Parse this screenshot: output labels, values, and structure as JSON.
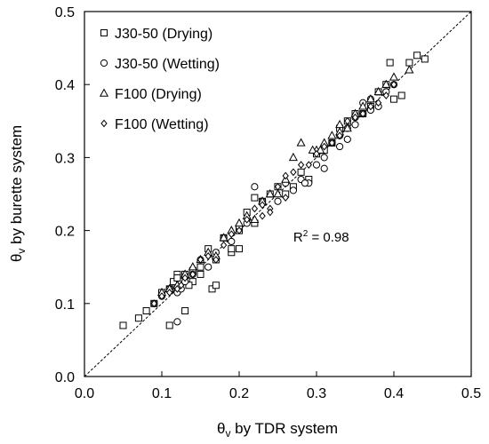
{
  "chart_data": {
    "type": "scatter",
    "xlabel": "θv by TDR system",
    "xlabel_parts": {
      "theta": "θ",
      "sub": "v",
      "rest": " by TDR system"
    },
    "ylabel": "θv by burette system",
    "ylabel_parts": {
      "theta": "θ",
      "sub": "v",
      "rest": " by burette system"
    },
    "xlim": [
      0,
      0.5
    ],
    "ylim": [
      0,
      0.5
    ],
    "xticks": [
      "0.0",
      "0.1",
      "0.2",
      "0.3",
      "0.4",
      "0.5"
    ],
    "yticks": [
      "0.0",
      "0.1",
      "0.2",
      "0.3",
      "0.4",
      "0.5"
    ],
    "reference_line": {
      "label": "1:1 line",
      "from": [
        0,
        0
      ],
      "to": [
        0.5,
        0.5
      ],
      "style": "dashed"
    },
    "annotation": {
      "text": "R² = 0.98",
      "prefix": "R",
      "sup": "2",
      "suffix": " = 0.98",
      "x": 0.27,
      "y": 0.185
    },
    "legend_position": "top-left",
    "series": [
      {
        "name": "J30-50 (Drying)",
        "marker": "square",
        "points": [
          [
            0.05,
            0.07
          ],
          [
            0.07,
            0.08
          ],
          [
            0.08,
            0.09
          ],
          [
            0.09,
            0.1
          ],
          [
            0.1,
            0.115
          ],
          [
            0.11,
            0.12
          ],
          [
            0.115,
            0.13
          ],
          [
            0.12,
            0.14
          ],
          [
            0.12,
            0.12
          ],
          [
            0.125,
            0.13
          ],
          [
            0.13,
            0.14
          ],
          [
            0.14,
            0.13
          ],
          [
            0.15,
            0.15
          ],
          [
            0.16,
            0.175
          ],
          [
            0.17,
            0.16
          ],
          [
            0.18,
            0.19
          ],
          [
            0.19,
            0.17
          ],
          [
            0.2,
            0.2
          ],
          [
            0.21,
            0.225
          ],
          [
            0.22,
            0.21
          ],
          [
            0.22,
            0.245
          ],
          [
            0.23,
            0.24
          ],
          [
            0.24,
            0.25
          ],
          [
            0.25,
            0.26
          ],
          [
            0.26,
            0.25
          ],
          [
            0.27,
            0.26
          ],
          [
            0.28,
            0.28
          ],
          [
            0.29,
            0.27
          ],
          [
            0.3,
            0.305
          ],
          [
            0.31,
            0.31
          ],
          [
            0.32,
            0.32
          ],
          [
            0.33,
            0.34
          ],
          [
            0.34,
            0.35
          ],
          [
            0.35,
            0.36
          ],
          [
            0.36,
            0.36
          ],
          [
            0.37,
            0.37
          ],
          [
            0.38,
            0.39
          ],
          [
            0.39,
            0.4
          ],
          [
            0.395,
            0.43
          ],
          [
            0.4,
            0.38
          ],
          [
            0.41,
            0.385
          ],
          [
            0.42,
            0.43
          ],
          [
            0.43,
            0.44
          ],
          [
            0.44,
            0.435
          ],
          [
            0.11,
            0.07
          ],
          [
            0.13,
            0.09
          ],
          [
            0.15,
            0.14
          ],
          [
            0.165,
            0.12
          ],
          [
            0.17,
            0.125
          ],
          [
            0.19,
            0.175
          ],
          [
            0.2,
            0.175
          ],
          [
            0.12,
            0.135
          ],
          [
            0.14,
            0.145
          ],
          [
            0.135,
            0.125
          ]
        ]
      },
      {
        "name": "J30-50 (Wetting)",
        "marker": "circle",
        "points": [
          [
            0.09,
            0.1
          ],
          [
            0.1,
            0.11
          ],
          [
            0.11,
            0.12
          ],
          [
            0.12,
            0.115
          ],
          [
            0.125,
            0.12
          ],
          [
            0.13,
            0.13
          ],
          [
            0.12,
            0.075
          ],
          [
            0.14,
            0.14
          ],
          [
            0.15,
            0.16
          ],
          [
            0.16,
            0.15
          ],
          [
            0.17,
            0.17
          ],
          [
            0.18,
            0.19
          ],
          [
            0.19,
            0.185
          ],
          [
            0.2,
            0.205
          ],
          [
            0.21,
            0.21
          ],
          [
            0.22,
            0.26
          ],
          [
            0.23,
            0.24
          ],
          [
            0.25,
            0.24
          ],
          [
            0.26,
            0.265
          ],
          [
            0.27,
            0.255
          ],
          [
            0.28,
            0.27
          ],
          [
            0.29,
            0.265
          ],
          [
            0.3,
            0.29
          ],
          [
            0.31,
            0.3
          ],
          [
            0.32,
            0.32
          ],
          [
            0.33,
            0.33
          ],
          [
            0.34,
            0.34
          ],
          [
            0.35,
            0.355
          ],
          [
            0.36,
            0.36
          ],
          [
            0.37,
            0.365
          ],
          [
            0.38,
            0.37
          ],
          [
            0.39,
            0.39
          ],
          [
            0.4,
            0.4
          ],
          [
            0.31,
            0.285
          ],
          [
            0.33,
            0.315
          ],
          [
            0.34,
            0.325
          ],
          [
            0.35,
            0.345
          ],
          [
            0.36,
            0.375
          ],
          [
            0.37,
            0.38
          ],
          [
            0.285,
            0.265
          ]
        ]
      },
      {
        "name": "F100 (Drying)",
        "marker": "triangle",
        "points": [
          [
            0.1,
            0.115
          ],
          [
            0.11,
            0.12
          ],
          [
            0.12,
            0.125
          ],
          [
            0.13,
            0.14
          ],
          [
            0.14,
            0.15
          ],
          [
            0.15,
            0.16
          ],
          [
            0.16,
            0.17
          ],
          [
            0.17,
            0.165
          ],
          [
            0.18,
            0.19
          ],
          [
            0.19,
            0.2
          ],
          [
            0.2,
            0.21
          ],
          [
            0.21,
            0.22
          ],
          [
            0.22,
            0.215
          ],
          [
            0.23,
            0.24
          ],
          [
            0.24,
            0.25
          ],
          [
            0.25,
            0.25
          ],
          [
            0.26,
            0.27
          ],
          [
            0.27,
            0.3
          ],
          [
            0.28,
            0.32
          ],
          [
            0.3,
            0.31
          ],
          [
            0.31,
            0.32
          ],
          [
            0.32,
            0.33
          ],
          [
            0.33,
            0.335
          ],
          [
            0.34,
            0.34
          ],
          [
            0.35,
            0.36
          ],
          [
            0.36,
            0.37
          ],
          [
            0.37,
            0.38
          ],
          [
            0.38,
            0.39
          ],
          [
            0.39,
            0.4
          ],
          [
            0.4,
            0.41
          ],
          [
            0.42,
            0.42
          ],
          [
            0.295,
            0.31
          ],
          [
            0.305,
            0.31
          ],
          [
            0.33,
            0.345
          ]
        ]
      },
      {
        "name": "F100 (Wetting)",
        "marker": "diamond",
        "points": [
          [
            0.09,
            0.1
          ],
          [
            0.1,
            0.11
          ],
          [
            0.11,
            0.115
          ],
          [
            0.12,
            0.12
          ],
          [
            0.125,
            0.125
          ],
          [
            0.13,
            0.135
          ],
          [
            0.14,
            0.14
          ],
          [
            0.15,
            0.16
          ],
          [
            0.16,
            0.165
          ],
          [
            0.17,
            0.16
          ],
          [
            0.18,
            0.18
          ],
          [
            0.19,
            0.195
          ],
          [
            0.2,
            0.2
          ],
          [
            0.21,
            0.215
          ],
          [
            0.22,
            0.23
          ],
          [
            0.23,
            0.22
          ],
          [
            0.24,
            0.23
          ],
          [
            0.25,
            0.26
          ],
          [
            0.26,
            0.275
          ],
          [
            0.27,
            0.28
          ],
          [
            0.28,
            0.29
          ],
          [
            0.29,
            0.29
          ],
          [
            0.3,
            0.305
          ],
          [
            0.31,
            0.315
          ],
          [
            0.32,
            0.32
          ],
          [
            0.33,
            0.33
          ],
          [
            0.34,
            0.35
          ],
          [
            0.35,
            0.355
          ],
          [
            0.36,
            0.36
          ],
          [
            0.37,
            0.37
          ],
          [
            0.38,
            0.375
          ],
          [
            0.39,
            0.385
          ],
          [
            0.4,
            0.4
          ],
          [
            0.23,
            0.235
          ],
          [
            0.24,
            0.225
          ],
          [
            0.26,
            0.245
          ]
        ]
      }
    ]
  }
}
